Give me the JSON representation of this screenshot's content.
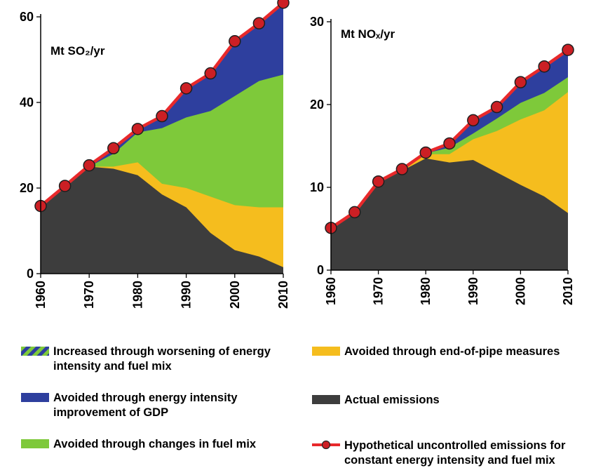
{
  "colors": {
    "actual": "#3d3d3d",
    "endofpipe": "#f5bd1e",
    "fuelmix": "#7ec93a",
    "energyint": "#2e3f9e",
    "line": "#e8292b",
    "marker": "#cc1f24",
    "worsening_stripe": "#7ec93a"
  },
  "legend": {
    "worsening": "Increased through worsening of energy intensity and fuel mix",
    "energyint": "Avoided through energy intensity improvement of GDP",
    "fuelmix": "Avoided through changes in fuel mix",
    "endofpipe": "Avoided through end-of-pipe measures",
    "actual": "Actual emissions",
    "hypothetical": "Hypothetical uncontrolled emissions for constant energy intensity and fuel mix"
  },
  "chart_data": [
    {
      "type": "area",
      "title": "Mt SO₂/yr",
      "x": [
        1960,
        1965,
        1970,
        1975,
        1980,
        1985,
        1990,
        1995,
        2000,
        2005,
        2010
      ],
      "ylim": [
        0,
        65
      ],
      "yticks": [
        0,
        20,
        40,
        60
      ],
      "xticks": [
        1960,
        1970,
        1980,
        1990,
        2000,
        2010
      ],
      "series": [
        {
          "key": "actual",
          "values": [
            15.5,
            20.5,
            25.0,
            24.5,
            23.0,
            18.5,
            15.5,
            9.5,
            5.5,
            4.0,
            1.5
          ]
        },
        {
          "key": "endofpipe",
          "values": [
            15.5,
            20.5,
            25.0,
            25.0,
            26.0,
            21.0,
            20.0,
            18.0,
            16.0,
            15.5,
            15.5
          ]
        },
        {
          "key": "fuelmix",
          "values": [
            15.5,
            20.5,
            25.0,
            28.0,
            33.0,
            34.0,
            36.5,
            38.0,
            41.5,
            45.0,
            46.5
          ]
        },
        {
          "key": "energyint",
          "values": [
            15.5,
            20.5,
            25.0,
            29.0,
            33.5,
            36.5,
            43.0,
            46.5,
            54.0,
            58.5,
            63.0
          ]
        }
      ],
      "hypothetical": [
        15.8,
        20.5,
        25.3,
        29.3,
        33.8,
        36.8,
        43.3,
        46.8,
        54.3,
        58.5,
        63.3
      ]
    },
    {
      "type": "area",
      "title": "Mt NOₓ/yr",
      "x": [
        1960,
        1965,
        1970,
        1975,
        1980,
        1985,
        1990,
        1995,
        2000,
        2005,
        2010
      ],
      "ylim": [
        0,
        30
      ],
      "yticks": [
        0,
        10,
        20,
        30
      ],
      "xticks": [
        1960,
        1970,
        1980,
        1990,
        2000,
        2010
      ],
      "series": [
        {
          "key": "actual",
          "values": [
            5.0,
            7.0,
            10.5,
            12.0,
            13.5,
            13.0,
            13.3,
            11.8,
            10.3,
            8.9,
            6.9
          ]
        },
        {
          "key": "endofpipe",
          "values": [
            5.0,
            7.0,
            10.5,
            12.0,
            14.0,
            14.0,
            15.8,
            16.8,
            18.2,
            19.3,
            21.5
          ]
        },
        {
          "key": "fuelmix",
          "values": [
            5.0,
            7.0,
            10.5,
            12.0,
            14.1,
            14.8,
            16.5,
            18.3,
            20.2,
            21.4,
            23.3
          ]
        },
        {
          "key": "energyint",
          "values": [
            5.0,
            7.0,
            10.6,
            12.2,
            14.2,
            15.2,
            18.0,
            19.7,
            22.6,
            24.5,
            26.6
          ]
        }
      ],
      "hypothetical": [
        5.1,
        7.0,
        10.7,
        12.2,
        14.2,
        15.3,
        18.1,
        19.7,
        22.7,
        24.6,
        26.6
      ]
    }
  ]
}
